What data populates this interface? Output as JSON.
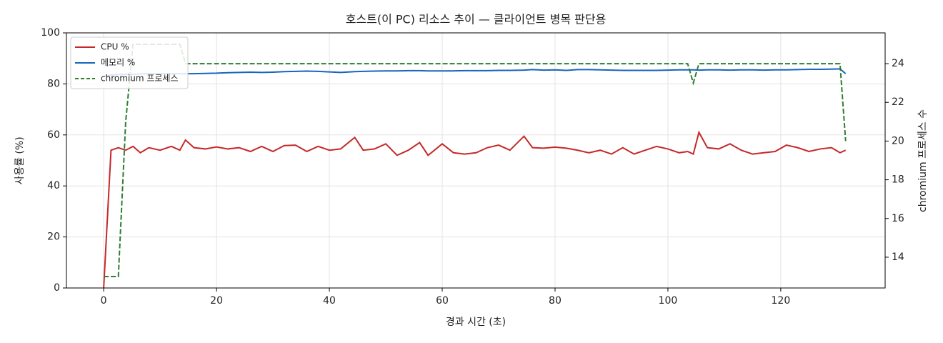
{
  "chart_data": {
    "type": "line",
    "title": "호스트(이 PC) 리소스 추이 — 클라이언트 병목 판단용",
    "x_label": "경과 시간 (초)",
    "y_label": "사용률 (%)",
    "y2_label": "chromium 프로세스 수",
    "x": [
      0,
      1.3,
      2.6,
      3.9,
      5.2,
      6.5,
      8,
      10,
      12,
      13.5,
      14.5,
      16,
      18,
      20,
      22,
      24,
      26,
      28,
      30,
      32,
      34,
      36,
      38,
      40,
      42,
      44.5,
      46,
      48,
      50,
      52,
      54,
      56,
      57.5,
      60,
      62,
      64,
      66,
      68,
      70,
      72,
      74.5,
      76,
      78,
      80,
      82,
      84,
      86,
      88,
      90,
      92,
      94,
      96,
      98,
      100,
      102,
      103.5,
      104.5,
      105.5,
      107,
      109,
      111,
      113,
      115,
      117,
      119,
      121,
      123,
      125,
      127,
      129,
      130.5,
      131.5
    ],
    "series": [
      {
        "name": "CPU %",
        "color": "#c62828",
        "linestyle": "solid",
        "values": [
          0,
          54,
          55,
          54,
          55.5,
          53,
          55,
          54,
          55.5,
          54,
          58,
          55,
          54.5,
          55.3,
          54.5,
          55,
          53.5,
          55.5,
          53.5,
          55.8,
          56,
          53.5,
          55.5,
          54,
          54.5,
          59,
          54,
          54.5,
          56.5,
          52,
          54,
          57,
          52,
          56.5,
          53,
          52.5,
          53,
          55,
          56,
          54,
          59.5,
          55,
          54.8,
          55.2,
          54.8,
          54,
          53,
          54,
          52.5,
          55,
          52.5,
          54,
          55.5,
          54.5,
          53,
          53.5,
          52.5,
          61,
          55,
          54.5,
          56.5,
          54,
          52.5,
          53,
          53.5,
          56,
          55,
          53.5,
          54.5,
          55,
          53,
          54
        ]
      },
      {
        "name": "메모리 %",
        "color": "#1565c0",
        "linestyle": "solid",
        "values": [
          83,
          83.5,
          83.7,
          83.8,
          83.8,
          83.9,
          84,
          84,
          84,
          84,
          84,
          84,
          84.1,
          84.2,
          84.4,
          84.5,
          84.6,
          84.5,
          84.6,
          84.8,
          84.9,
          85,
          84.9,
          84.7,
          84.5,
          84.8,
          84.9,
          85,
          85.1,
          85.1,
          85.2,
          85.2,
          85.1,
          85.1,
          85.1,
          85.2,
          85.2,
          85.2,
          85.3,
          85.3,
          85.4,
          85.6,
          85.4,
          85.5,
          85.3,
          85.6,
          85.6,
          85.5,
          85.4,
          85.3,
          85.3,
          85.3,
          85.3,
          85.4,
          85.5,
          85.5,
          85.5,
          85.4,
          85.5,
          85.5,
          85.4,
          85.5,
          85.5,
          85.4,
          85.5,
          85.5,
          85.6,
          85.7,
          85.7,
          85.8,
          85.9,
          84
        ]
      },
      {
        "name": "chromium 프로세스",
        "color": "#2e7d32",
        "linestyle": "dashed",
        "axis": "y2",
        "values": [
          13,
          13,
          13,
          21,
          25,
          25,
          25,
          25,
          25,
          25,
          24,
          24,
          24,
          24,
          24,
          24,
          24,
          24,
          24,
          24,
          24,
          24,
          24,
          24,
          24,
          24,
          24,
          24,
          24,
          24,
          24,
          24,
          24,
          24,
          24,
          24,
          24,
          24,
          24,
          24,
          24,
          24,
          24,
          24,
          24,
          24,
          24,
          24,
          24,
          24,
          24,
          24,
          24,
          24,
          24,
          24,
          23,
          24,
          24,
          24,
          24,
          24,
          24,
          24,
          24,
          24,
          24,
          24,
          24,
          24,
          24,
          20
        ]
      }
    ],
    "xlim": [
      -6.6,
      138.5
    ],
    "xticks": [
      0,
      20,
      40,
      60,
      80,
      100,
      120
    ],
    "ylim": [
      0,
      100
    ],
    "yticks": [
      0,
      20,
      40,
      60,
      80,
      100
    ],
    "y2lim": [
      12.41,
      25.59
    ],
    "y2ticks": [
      14,
      16,
      18,
      20,
      22,
      24
    ],
    "grid": true,
    "legend": "upper left"
  }
}
